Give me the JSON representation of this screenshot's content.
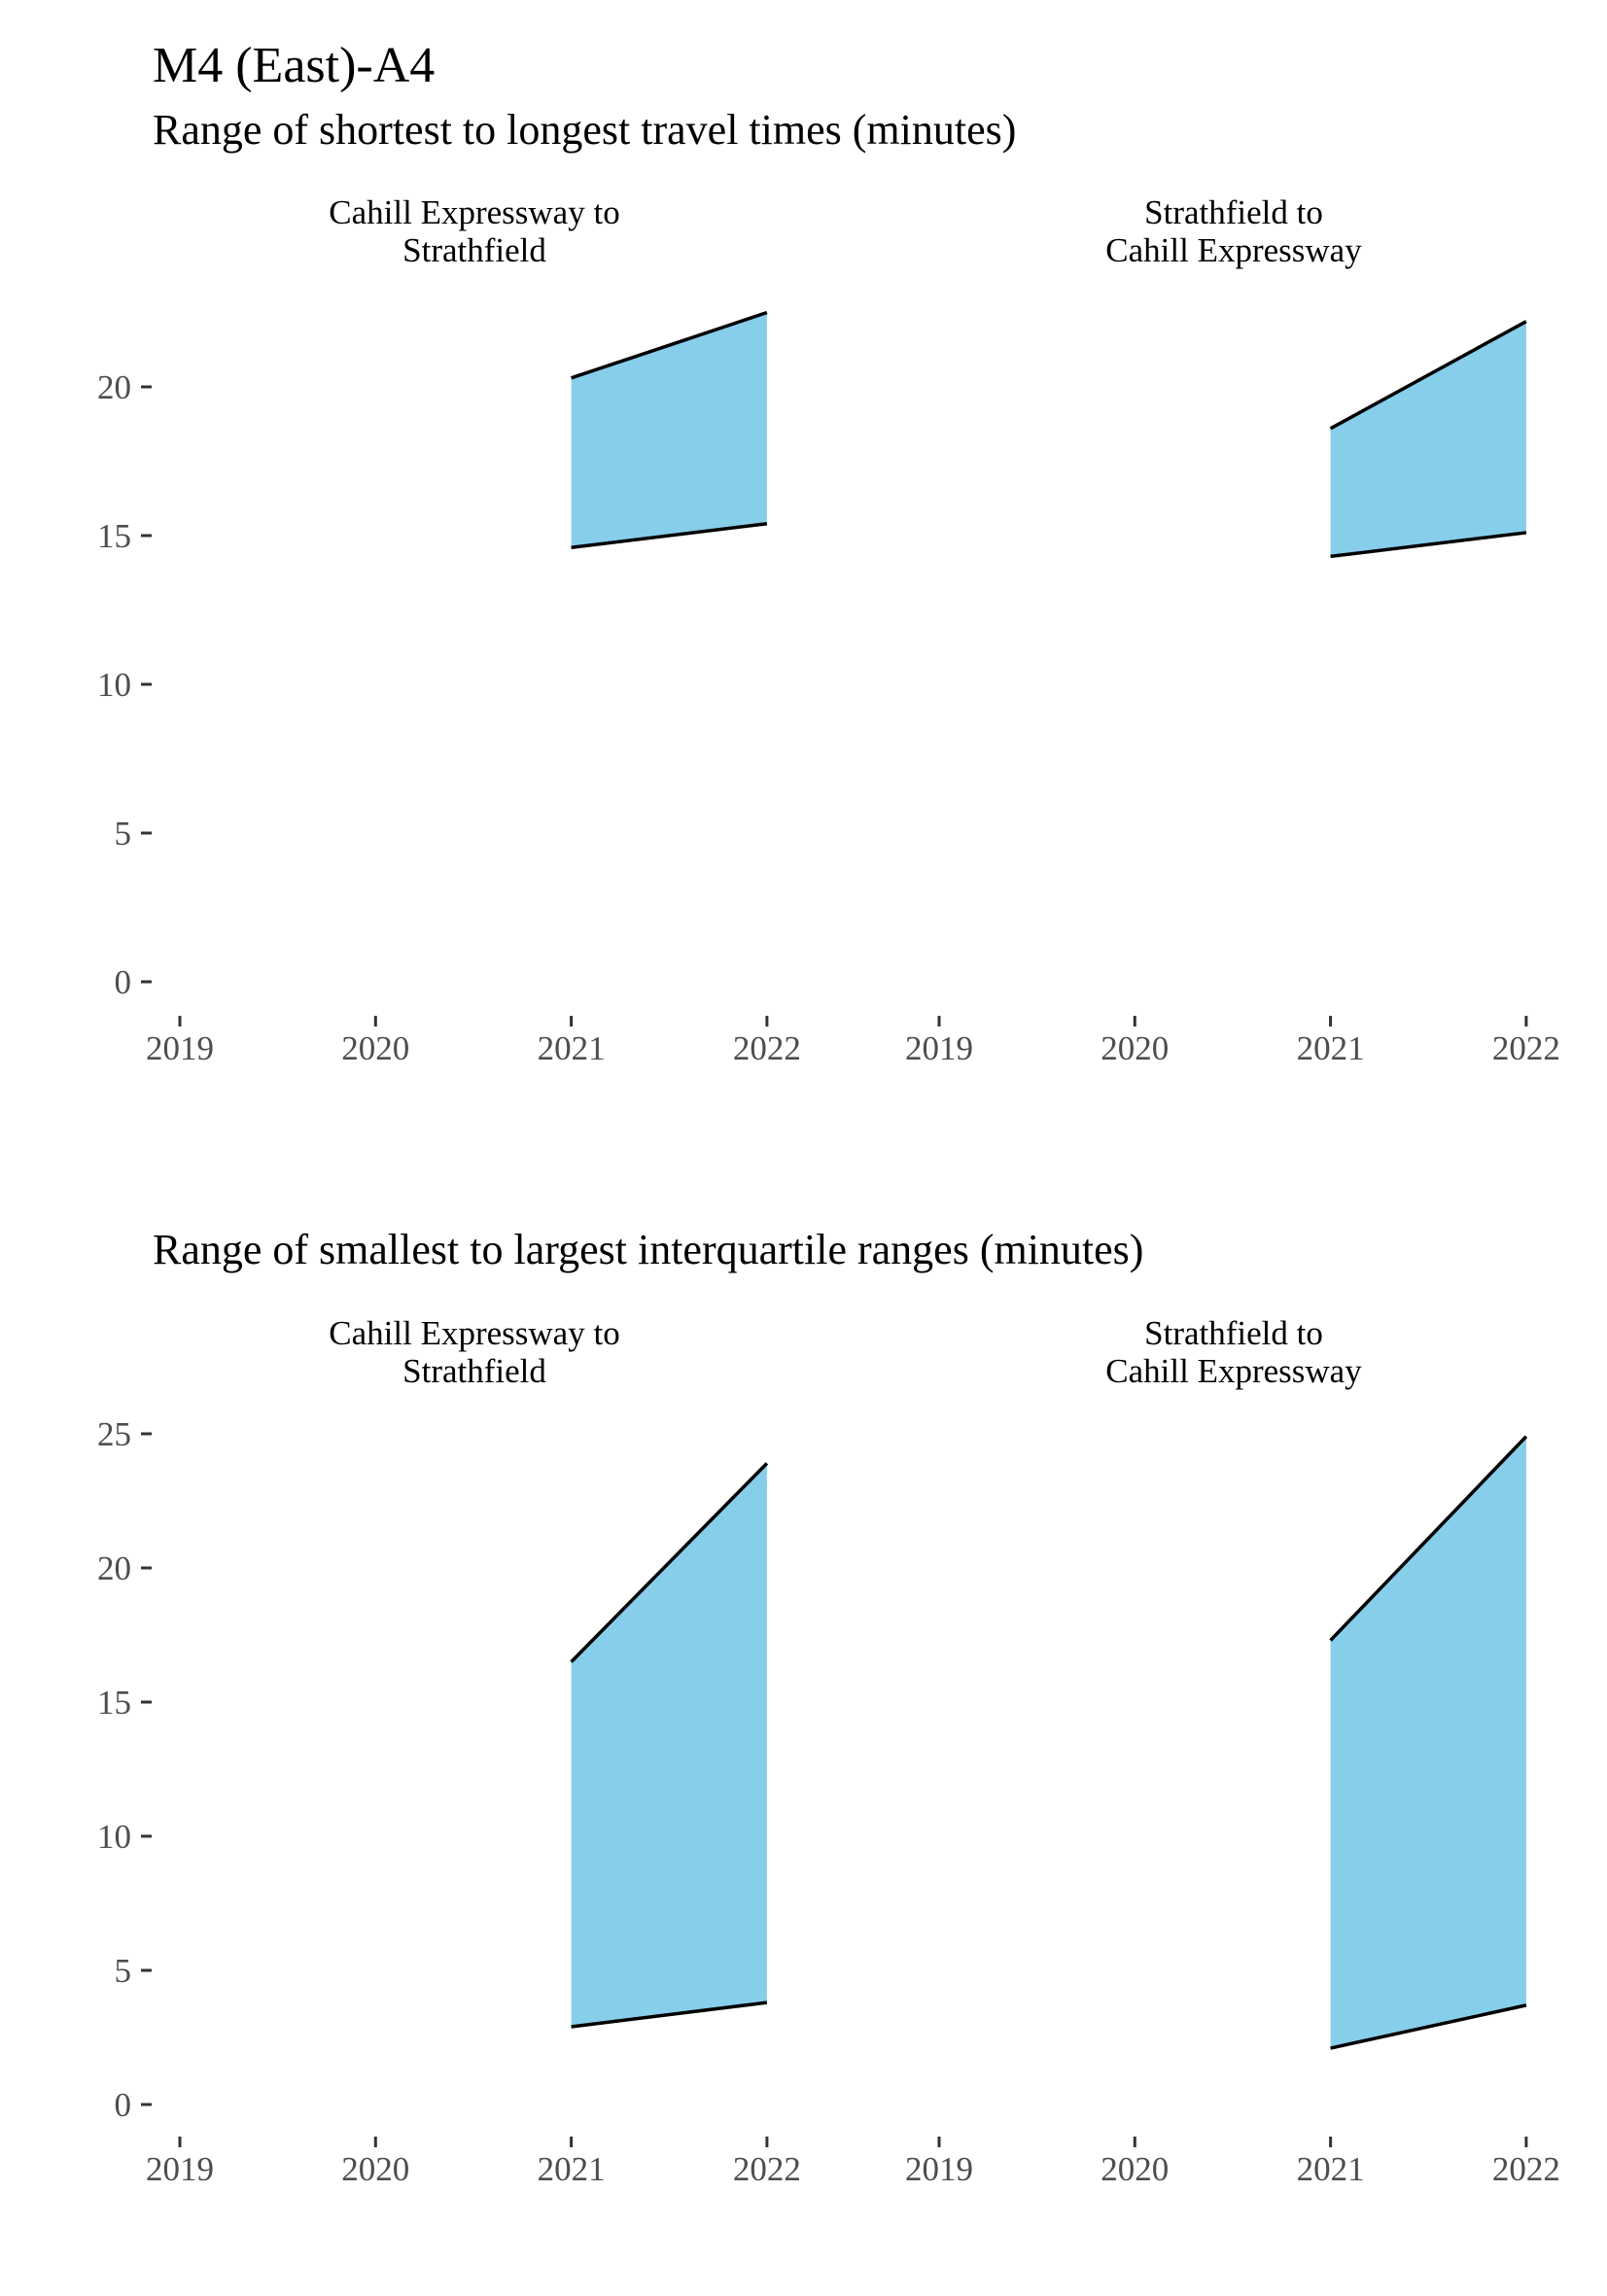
{
  "title": "M4 (East)-A4",
  "colors": {
    "band_fill": "#87ceeb",
    "line": "#000000",
    "tick_text": "#4d4d4d"
  },
  "chart_data": [
    {
      "type": "area",
      "title": "Range of shortest to longest travel times (minutes)",
      "ylim": [
        0,
        22.5
      ],
      "y_ticks": [
        0,
        5,
        10,
        15,
        20
      ],
      "x_ticks": [
        "2019",
        "2020",
        "2021",
        "2022"
      ],
      "panels": [
        {
          "label": "Cahill Expressway to\nStrathfield",
          "x": [
            2021,
            2022
          ],
          "lower": [
            14.6,
            15.4
          ],
          "upper": [
            20.3,
            22.5
          ]
        },
        {
          "label": "Strathfield to\nCahill Expressway",
          "x": [
            2021,
            2022
          ],
          "lower": [
            14.3,
            15.1
          ],
          "upper": [
            18.6,
            22.2
          ]
        }
      ]
    },
    {
      "type": "area",
      "title": "Range of smallest to largest interquartile ranges (minutes)",
      "ylim": [
        0,
        25
      ],
      "y_ticks": [
        0,
        5,
        10,
        15,
        20,
        25
      ],
      "x_ticks": [
        "2019",
        "2020",
        "2021",
        "2022"
      ],
      "panels": [
        {
          "label": "Cahill Expressway to\nStrathfield",
          "x": [
            2021,
            2022
          ],
          "lower": [
            2.9,
            3.8
          ],
          "upper": [
            16.5,
            23.9
          ]
        },
        {
          "label": "Strathfield to\nCahill Expressway",
          "x": [
            2021,
            2022
          ],
          "lower": [
            2.1,
            3.7
          ],
          "upper": [
            17.3,
            24.9
          ]
        }
      ]
    }
  ]
}
